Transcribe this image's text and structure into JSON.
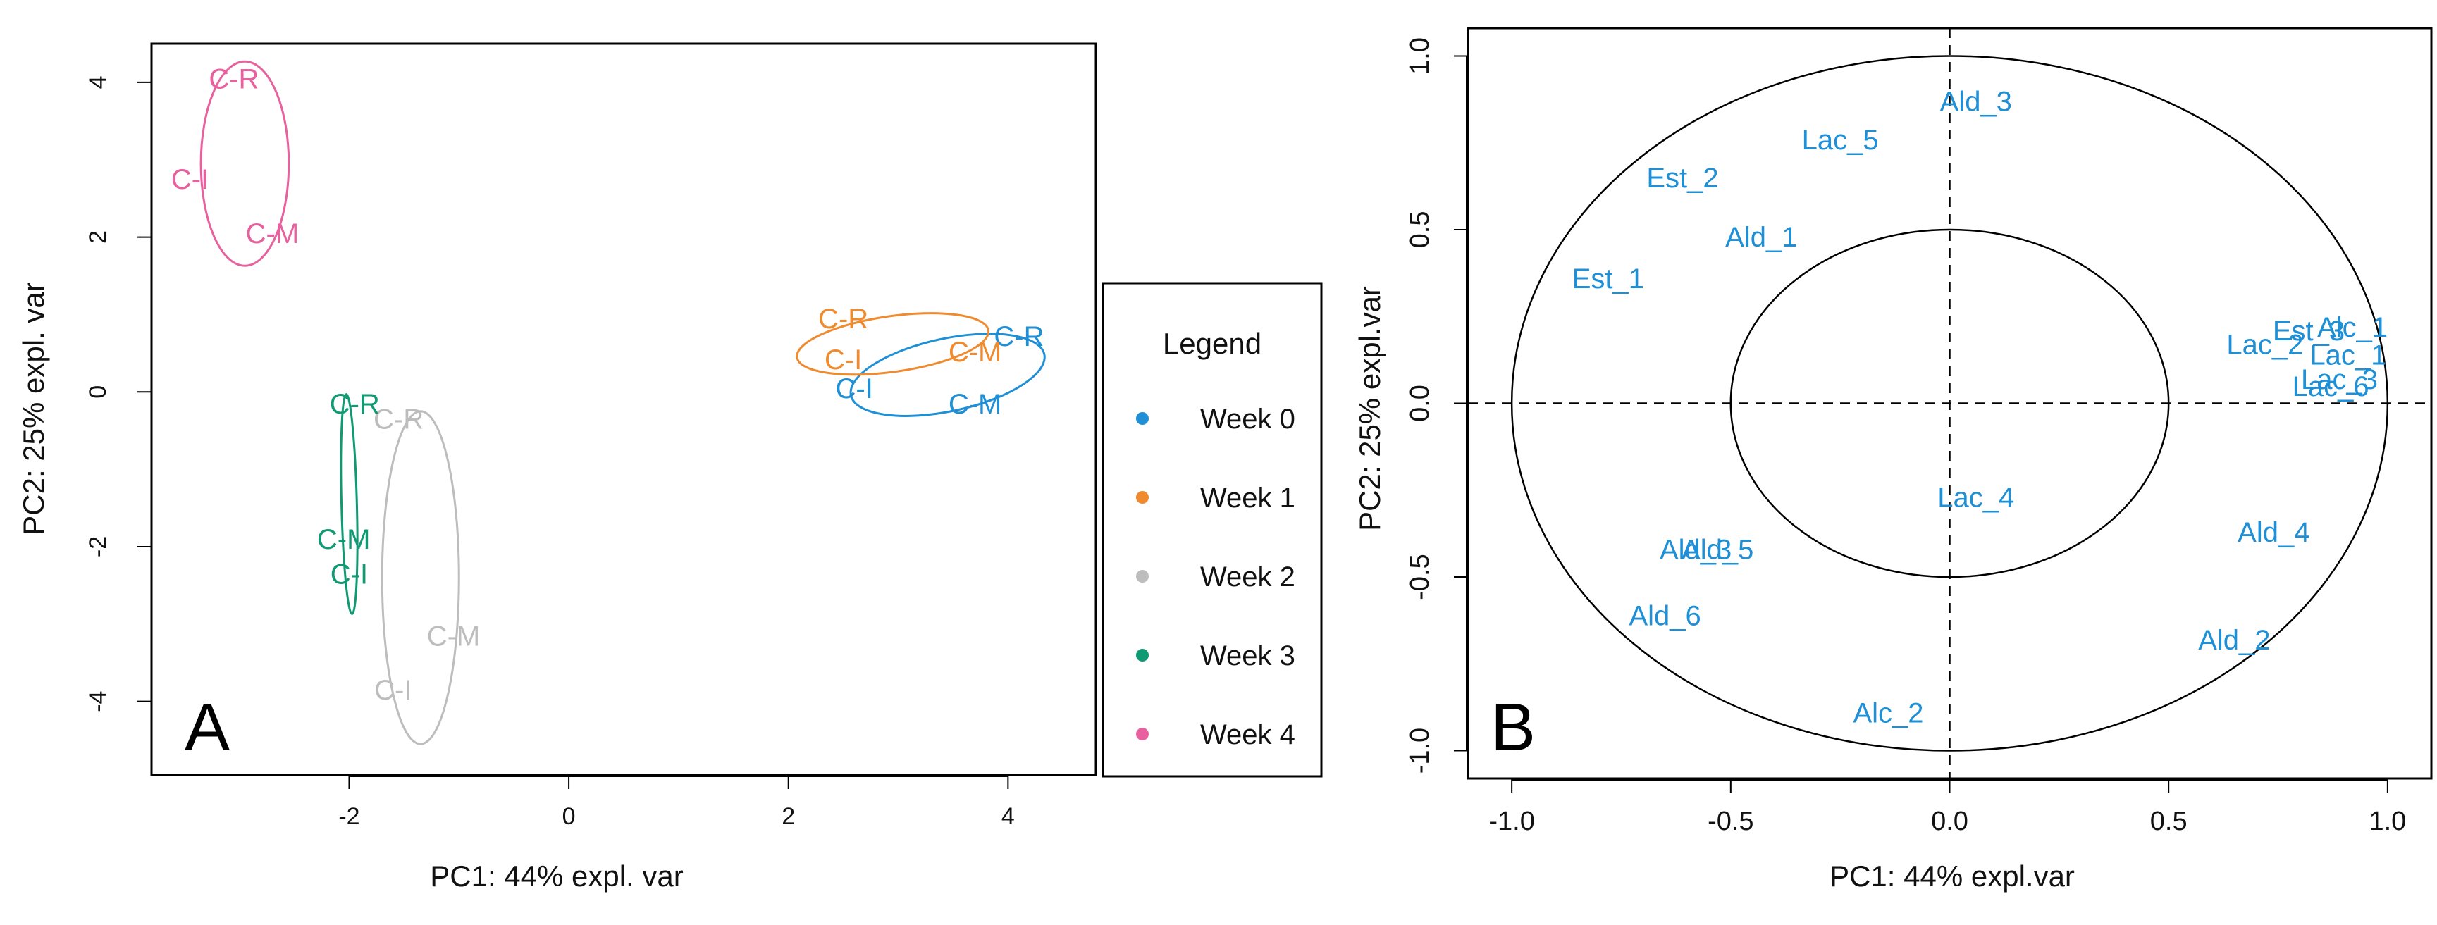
{
  "chart_data": [
    {
      "type": "scatter",
      "panel_label": "A",
      "xlabel": "PC1: 44% expl. var",
      "ylabel": "PC2: 25% expl. var",
      "xlim": [
        -3.8,
        4.8
      ],
      "ylim": [
        -4.95,
        4.5
      ],
      "xticks": [
        -2,
        0,
        2,
        4
      ],
      "yticks": [
        -4,
        -2,
        0,
        2,
        4
      ],
      "xtick_labels": [
        "-2",
        "0",
        "2",
        "4"
      ],
      "ytick_labels": [
        "-4",
        "-2",
        "0",
        "2",
        "4"
      ],
      "legend": {
        "title": "Legend",
        "entries": [
          {
            "label": "Week 0",
            "color": "#1f8fd6"
          },
          {
            "label": "Week 1",
            "color": "#f08a2e"
          },
          {
            "label": "Week 2",
            "color": "#bdbdbd"
          },
          {
            "label": "Week 3",
            "color": "#0f9a73"
          },
          {
            "label": "Week 4",
            "color": "#e8609e"
          }
        ]
      },
      "series": [
        {
          "name": "Week 0",
          "color": "#1f8fd6",
          "points": [
            {
              "label": "C-R",
              "x": 4.1,
              "y": 0.72
            },
            {
              "label": "C-I",
              "x": 2.6,
              "y": 0.05
            },
            {
              "label": "C-M",
              "x": 3.7,
              "y": -0.15
            }
          ],
          "ellipse": {
            "cx": 3.45,
            "cy": 0.22,
            "rx": 0.9,
            "ry": 0.47,
            "angle": 12
          }
        },
        {
          "name": "Week 1",
          "color": "#f08a2e",
          "points": [
            {
              "label": "C-R",
              "x": 2.5,
              "y": 0.95
            },
            {
              "label": "C-I",
              "x": 2.5,
              "y": 0.42
            },
            {
              "label": "C-M",
              "x": 3.7,
              "y": 0.52
            }
          ],
          "ellipse": {
            "cx": 2.95,
            "cy": 0.62,
            "rx": 0.88,
            "ry": 0.36,
            "angle": 8
          }
        },
        {
          "name": "Week 2",
          "color": "#bdbdbd",
          "points": [
            {
              "label": "C-R",
              "x": -1.55,
              "y": -0.35
            },
            {
              "label": "C-M",
              "x": -1.05,
              "y": -3.15
            },
            {
              "label": "C-I",
              "x": -1.6,
              "y": -3.85
            }
          ],
          "ellipse": {
            "cx": -1.35,
            "cy": -2.4,
            "rx": 0.35,
            "ry": 2.15,
            "angle": 0
          }
        },
        {
          "name": "Week 3",
          "color": "#0f9a73",
          "points": [
            {
              "label": "C-R",
              "x": -1.95,
              "y": -0.15
            },
            {
              "label": "C-M",
              "x": -2.05,
              "y": -1.9
            },
            {
              "label": "C-I",
              "x": -2.0,
              "y": -2.35
            }
          ],
          "ellipse": {
            "cx": -2.0,
            "cy": -1.45,
            "rx": 0.07,
            "ry": 1.42,
            "angle": 1.5
          }
        },
        {
          "name": "Week 4",
          "color": "#e8609e",
          "points": [
            {
              "label": "C-R",
              "x": -3.05,
              "y": 4.05
            },
            {
              "label": "C-I",
              "x": -3.45,
              "y": 2.75
            },
            {
              "label": "C-M",
              "x": -2.7,
              "y": 2.05
            }
          ],
          "ellipse": {
            "cx": -2.95,
            "cy": 2.95,
            "rx": 0.4,
            "ry": 1.32,
            "angle": 0
          }
        }
      ]
    },
    {
      "type": "scatter",
      "panel_label": "B",
      "xlabel": "PC1: 44% expl.var",
      "ylabel": "PC2: 25% expl.var",
      "xlim": [
        -1.1,
        1.1
      ],
      "ylim": [
        -1.08,
        1.08
      ],
      "xticks": [
        -1.0,
        -0.5,
        0.0,
        0.5,
        1.0
      ],
      "yticks": [
        -1.0,
        -0.5,
        0.0,
        0.5,
        1.0
      ],
      "xtick_labels": [
        "-1.0",
        "-0.5",
        "0.0",
        "0.5",
        "1.0"
      ],
      "ytick_labels": [
        "-1.0",
        "-0.5",
        "0.0",
        "0.5",
        "1.0"
      ],
      "circles": [
        0.5,
        1.0
      ],
      "color": "#1f8fd6",
      "variables": [
        {
          "label": "Ald_3",
          "x": 0.06,
          "y": 0.87
        },
        {
          "label": "Lac_5",
          "x": -0.25,
          "y": 0.76
        },
        {
          "label": "Est_2",
          "x": -0.61,
          "y": 0.65
        },
        {
          "label": "Ald_1",
          "x": -0.43,
          "y": 0.48
        },
        {
          "label": "Est_1",
          "x": -0.78,
          "y": 0.36
        },
        {
          "label": "Alc_1",
          "x": 0.92,
          "y": 0.22
        },
        {
          "label": "Est_3",
          "x": 0.82,
          "y": 0.21
        },
        {
          "label": "Lac_2",
          "x": 0.72,
          "y": 0.17
        },
        {
          "label": "Lac_1",
          "x": 0.91,
          "y": 0.14
        },
        {
          "label": "Lac_3",
          "x": 0.89,
          "y": 0.07
        },
        {
          "label": "Lac_6",
          "x": 0.87,
          "y": 0.05
        },
        {
          "label": "Lac_4",
          "x": 0.06,
          "y": -0.27
        },
        {
          "label": "Ald_4",
          "x": 0.74,
          "y": -0.37
        },
        {
          "label": "Ald_3",
          "x": -0.58,
          "y": -0.42
        },
        {
          "label": "Ald_5",
          "x": -0.53,
          "y": -0.42
        },
        {
          "label": "Ald_6",
          "x": -0.65,
          "y": -0.61
        },
        {
          "label": "Ald_2",
          "x": 0.65,
          "y": -0.68
        },
        {
          "label": "Alc_2",
          "x": -0.14,
          "y": -0.89
        }
      ]
    }
  ]
}
